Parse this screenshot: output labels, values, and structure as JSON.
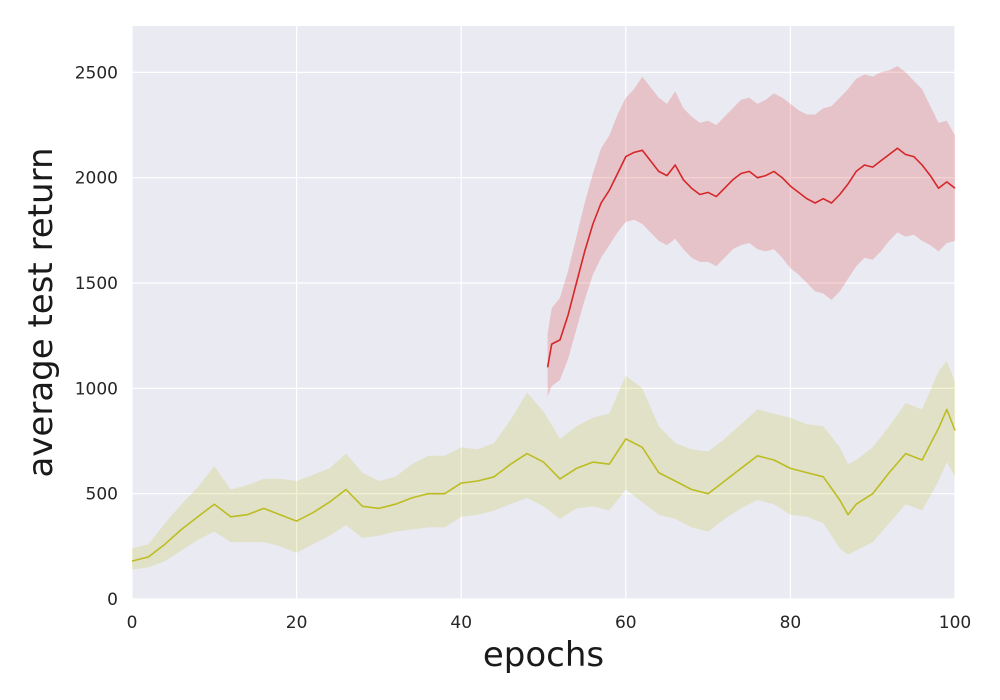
{
  "chart_data": {
    "type": "line",
    "xlabel": "epochs",
    "ylabel": "average test return",
    "xlim": [
      0,
      100
    ],
    "ylim": [
      0,
      2720
    ],
    "x_ticks": [
      0,
      20,
      40,
      60,
      80,
      100
    ],
    "y_ticks": [
      0,
      500,
      1000,
      1500,
      2000,
      2500
    ],
    "grid": true,
    "legend": "none",
    "series": [
      {
        "color": "#bcbd22",
        "band_color": "#bcbd22",
        "points": [
          [
            0,
            180
          ],
          [
            2,
            200
          ],
          [
            4,
            260
          ],
          [
            6,
            330
          ],
          [
            8,
            390
          ],
          [
            10,
            450
          ],
          [
            12,
            390
          ],
          [
            14,
            400
          ],
          [
            16,
            430
          ],
          [
            18,
            400
          ],
          [
            20,
            370
          ],
          [
            22,
            410
          ],
          [
            24,
            460
          ],
          [
            26,
            520
          ],
          [
            28,
            440
          ],
          [
            30,
            430
          ],
          [
            32,
            450
          ],
          [
            34,
            480
          ],
          [
            36,
            500
          ],
          [
            38,
            500
          ],
          [
            40,
            550
          ],
          [
            42,
            560
          ],
          [
            44,
            580
          ],
          [
            46,
            640
          ],
          [
            48,
            690
          ],
          [
            50,
            650
          ],
          [
            52,
            570
          ],
          [
            54,
            620
          ],
          [
            56,
            650
          ],
          [
            58,
            640
          ],
          [
            60,
            760
          ],
          [
            62,
            720
          ],
          [
            64,
            600
          ],
          [
            66,
            560
          ],
          [
            68,
            520
          ],
          [
            70,
            500
          ],
          [
            72,
            560
          ],
          [
            74,
            620
          ],
          [
            76,
            680
          ],
          [
            78,
            660
          ],
          [
            80,
            620
          ],
          [
            82,
            600
          ],
          [
            84,
            580
          ],
          [
            86,
            470
          ],
          [
            87,
            400
          ],
          [
            88,
            450
          ],
          [
            90,
            500
          ],
          [
            92,
            600
          ],
          [
            94,
            690
          ],
          [
            96,
            660
          ],
          [
            98,
            810
          ],
          [
            99,
            900
          ],
          [
            100,
            800
          ]
        ],
        "band": [
          [
            0,
            140,
            240
          ],
          [
            2,
            150,
            260
          ],
          [
            4,
            180,
            360
          ],
          [
            6,
            230,
            450
          ],
          [
            8,
            280,
            530
          ],
          [
            10,
            320,
            630
          ],
          [
            12,
            270,
            520
          ],
          [
            14,
            270,
            540
          ],
          [
            16,
            270,
            570
          ],
          [
            18,
            250,
            570
          ],
          [
            20,
            220,
            560
          ],
          [
            22,
            260,
            590
          ],
          [
            24,
            300,
            620
          ],
          [
            26,
            350,
            690
          ],
          [
            28,
            290,
            600
          ],
          [
            30,
            300,
            560
          ],
          [
            32,
            320,
            580
          ],
          [
            34,
            330,
            640
          ],
          [
            36,
            340,
            680
          ],
          [
            38,
            340,
            680
          ],
          [
            40,
            390,
            720
          ],
          [
            42,
            400,
            710
          ],
          [
            44,
            420,
            740
          ],
          [
            46,
            450,
            850
          ],
          [
            48,
            480,
            980
          ],
          [
            50,
            440,
            890
          ],
          [
            52,
            380,
            760
          ],
          [
            54,
            430,
            820
          ],
          [
            56,
            440,
            860
          ],
          [
            58,
            420,
            880
          ],
          [
            60,
            520,
            1060
          ],
          [
            62,
            460,
            1000
          ],
          [
            64,
            400,
            820
          ],
          [
            66,
            380,
            740
          ],
          [
            68,
            340,
            710
          ],
          [
            70,
            320,
            700
          ],
          [
            72,
            380,
            760
          ],
          [
            74,
            430,
            830
          ],
          [
            76,
            470,
            900
          ],
          [
            78,
            450,
            880
          ],
          [
            80,
            400,
            860
          ],
          [
            82,
            390,
            830
          ],
          [
            84,
            360,
            820
          ],
          [
            86,
            240,
            720
          ],
          [
            87,
            210,
            640
          ],
          [
            88,
            230,
            660
          ],
          [
            90,
            270,
            720
          ],
          [
            92,
            360,
            820
          ],
          [
            94,
            450,
            930
          ],
          [
            96,
            420,
            900
          ],
          [
            98,
            560,
            1080
          ],
          [
            99,
            650,
            1130
          ],
          [
            100,
            580,
            1030
          ]
        ]
      },
      {
        "color": "#d62728",
        "band_color": "#d62728",
        "points": [
          [
            50.5,
            1100
          ],
          [
            51,
            1210
          ],
          [
            52,
            1230
          ],
          [
            53,
            1350
          ],
          [
            54,
            1500
          ],
          [
            55,
            1650
          ],
          [
            56,
            1780
          ],
          [
            57,
            1880
          ],
          [
            58,
            1940
          ],
          [
            59,
            2020
          ],
          [
            60,
            2100
          ],
          [
            61,
            2120
          ],
          [
            62,
            2130
          ],
          [
            63,
            2080
          ],
          [
            64,
            2030
          ],
          [
            65,
            2010
          ],
          [
            66,
            2060
          ],
          [
            67,
            1990
          ],
          [
            68,
            1950
          ],
          [
            69,
            1920
          ],
          [
            70,
            1930
          ],
          [
            71,
            1910
          ],
          [
            72,
            1950
          ],
          [
            73,
            1990
          ],
          [
            74,
            2020
          ],
          [
            75,
            2030
          ],
          [
            76,
            2000
          ],
          [
            77,
            2010
          ],
          [
            78,
            2030
          ],
          [
            79,
            2000
          ],
          [
            80,
            1960
          ],
          [
            81,
            1930
          ],
          [
            82,
            1900
          ],
          [
            83,
            1880
          ],
          [
            84,
            1900
          ],
          [
            85,
            1880
          ],
          [
            86,
            1920
          ],
          [
            87,
            1970
          ],
          [
            88,
            2030
          ],
          [
            89,
            2060
          ],
          [
            90,
            2050
          ],
          [
            91,
            2080
          ],
          [
            92,
            2110
          ],
          [
            93,
            2140
          ],
          [
            94,
            2110
          ],
          [
            95,
            2100
          ],
          [
            96,
            2060
          ],
          [
            97,
            2010
          ],
          [
            98,
            1950
          ],
          [
            99,
            1980
          ],
          [
            100,
            1950
          ]
        ],
        "band": [
          [
            50.5,
            960,
            1260
          ],
          [
            51,
            1010,
            1380
          ],
          [
            52,
            1040,
            1430
          ],
          [
            53,
            1140,
            1560
          ],
          [
            54,
            1280,
            1720
          ],
          [
            55,
            1420,
            1880
          ],
          [
            56,
            1540,
            2020
          ],
          [
            57,
            1620,
            2140
          ],
          [
            58,
            1680,
            2200
          ],
          [
            59,
            1740,
            2300
          ],
          [
            60,
            1790,
            2380
          ],
          [
            61,
            1800,
            2420
          ],
          [
            62,
            1780,
            2480
          ],
          [
            63,
            1740,
            2430
          ],
          [
            64,
            1700,
            2380
          ],
          [
            65,
            1680,
            2350
          ],
          [
            66,
            1710,
            2410
          ],
          [
            67,
            1660,
            2330
          ],
          [
            68,
            1620,
            2290
          ],
          [
            69,
            1600,
            2260
          ],
          [
            70,
            1600,
            2270
          ],
          [
            71,
            1580,
            2250
          ],
          [
            72,
            1620,
            2290
          ],
          [
            73,
            1660,
            2330
          ],
          [
            74,
            1680,
            2370
          ],
          [
            75,
            1690,
            2380
          ],
          [
            76,
            1660,
            2350
          ],
          [
            77,
            1650,
            2370
          ],
          [
            78,
            1660,
            2400
          ],
          [
            79,
            1620,
            2380
          ],
          [
            80,
            1570,
            2350
          ],
          [
            81,
            1540,
            2320
          ],
          [
            82,
            1500,
            2300
          ],
          [
            83,
            1460,
            2300
          ],
          [
            84,
            1450,
            2330
          ],
          [
            85,
            1420,
            2340
          ],
          [
            86,
            1460,
            2380
          ],
          [
            87,
            1520,
            2420
          ],
          [
            88,
            1580,
            2470
          ],
          [
            89,
            1620,
            2490
          ],
          [
            90,
            1610,
            2480
          ],
          [
            91,
            1650,
            2500
          ],
          [
            92,
            1700,
            2510
          ],
          [
            93,
            1740,
            2530
          ],
          [
            94,
            1720,
            2500
          ],
          [
            95,
            1730,
            2460
          ],
          [
            96,
            1700,
            2420
          ],
          [
            97,
            1680,
            2340
          ],
          [
            98,
            1650,
            2260
          ],
          [
            99,
            1690,
            2270
          ],
          [
            100,
            1700,
            2200
          ]
        ]
      }
    ]
  }
}
